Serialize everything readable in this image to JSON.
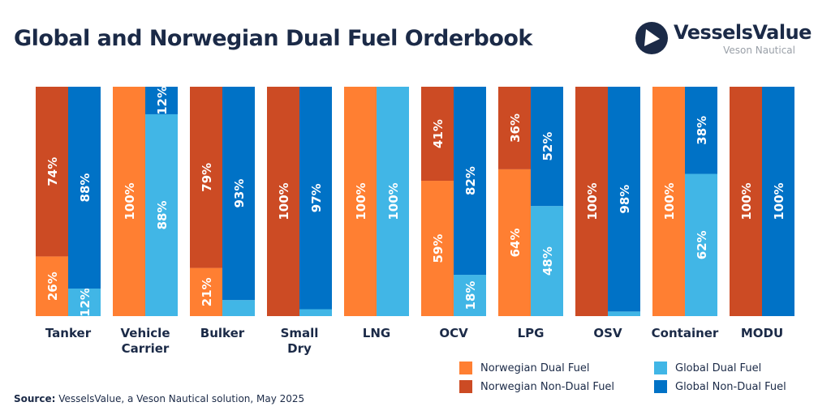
{
  "title": "Global and Norwegian Dual Fuel Orderbook",
  "logo": {
    "name": "VesselsValue",
    "subtitle": "Veson Nautical"
  },
  "source": {
    "label": "Source:",
    "text": "VesselsValue, a Veson Nautical solution, May 2025"
  },
  "colors": {
    "norwegian_dual": "#FF7F32",
    "norwegian_non_dual": "#CC4B24",
    "global_dual": "#41B6E6",
    "global_non_dual": "#0072C6"
  },
  "chart_data": {
    "type": "bar",
    "stacked": "100%",
    "title": "Global and Norwegian Dual Fuel Orderbook",
    "categories": [
      "Tanker",
      "Vehicle Carrier",
      "Bulker",
      "Small Dry",
      "LNG",
      "OCV",
      "LPG",
      "OSV",
      "Container",
      "MODU"
    ],
    "ylim": [
      0,
      100
    ],
    "grid": false,
    "legend_position": "bottom-right",
    "groups": [
      {
        "name": "Norwegian",
        "series": [
          {
            "name": "Norwegian Dual Fuel",
            "values": [
              26,
              100,
              21,
              0,
              100,
              59,
              64,
              0,
              100,
              0
            ]
          },
          {
            "name": "Norwegian Non-Dual Fuel",
            "values": [
              74,
              0,
              79,
              100,
              0,
              41,
              36,
              100,
              0,
              100
            ]
          }
        ]
      },
      {
        "name": "Global",
        "series": [
          {
            "name": "Global Dual Fuel",
            "values": [
              12,
              88,
              7,
              3,
              100,
              18,
              48,
              2,
              62,
              0
            ]
          },
          {
            "name": "Global Non-Dual Fuel",
            "values": [
              88,
              12,
              93,
              97,
              0,
              82,
              52,
              98,
              38,
              100
            ]
          }
        ]
      }
    ]
  },
  "legend": [
    "Norwegian Dual Fuel",
    "Global Dual Fuel",
    "Norwegian Non-Dual Fuel",
    "Global Non-Dual Fuel"
  ]
}
